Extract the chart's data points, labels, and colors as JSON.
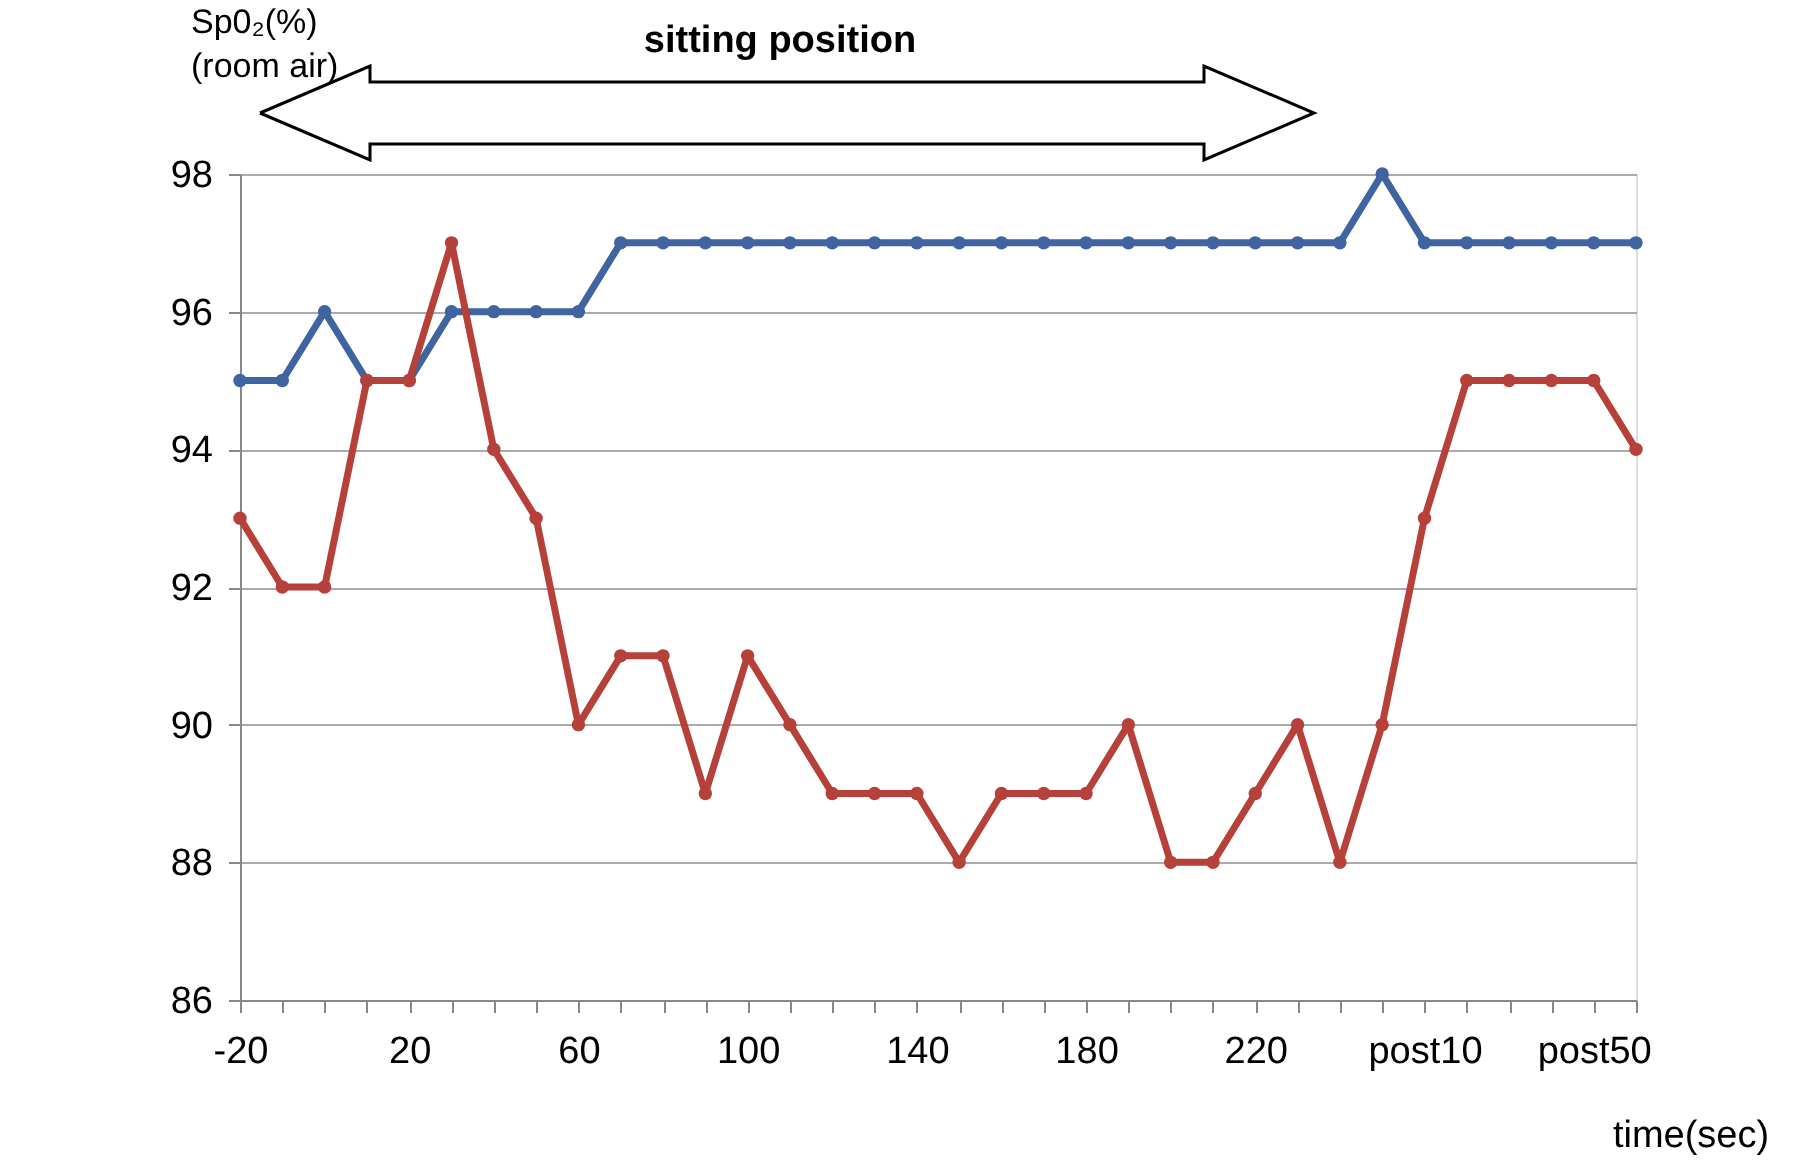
{
  "chart_data": {
    "type": "line",
    "categories": [
      "-20",
      null,
      null,
      null,
      "20",
      null,
      null,
      null,
      "60",
      null,
      null,
      null,
      "100",
      null,
      null,
      null,
      "140",
      null,
      null,
      null,
      "180",
      null,
      null,
      null,
      "220",
      null,
      null,
      null,
      "post10",
      null,
      null,
      null,
      "post50",
      null
    ],
    "series": [
      {
        "color": "#3f64a0",
        "values": [
          95,
          95,
          96,
          95,
          95,
          96,
          96,
          96,
          96,
          97,
          97,
          97,
          97,
          97,
          97,
          97,
          97,
          97,
          97,
          97,
          97,
          97,
          97,
          97,
          97,
          97,
          97,
          98,
          97,
          97,
          97,
          97,
          97,
          97
        ]
      },
      {
        "color": "#b5413a",
        "values": [
          93,
          92,
          92,
          95,
          95,
          97,
          94,
          93,
          90,
          91,
          91,
          89,
          91,
          90,
          89,
          89,
          89,
          88,
          89,
          89,
          89,
          90,
          88,
          88,
          89,
          90,
          88,
          90,
          93,
          95,
          95,
          95,
          95,
          94
        ]
      }
    ],
    "ylabel": "Sp0₂(%)\n(room air)",
    "xlabel": "time(sec)",
    "ylim": [
      86,
      98
    ],
    "yticks": [
      86,
      88,
      90,
      92,
      94,
      96,
      98
    ],
    "grid": "y",
    "marker": "circle",
    "line_style": "solid",
    "legend": false,
    "annotations": [
      "sitting position"
    ]
  }
}
